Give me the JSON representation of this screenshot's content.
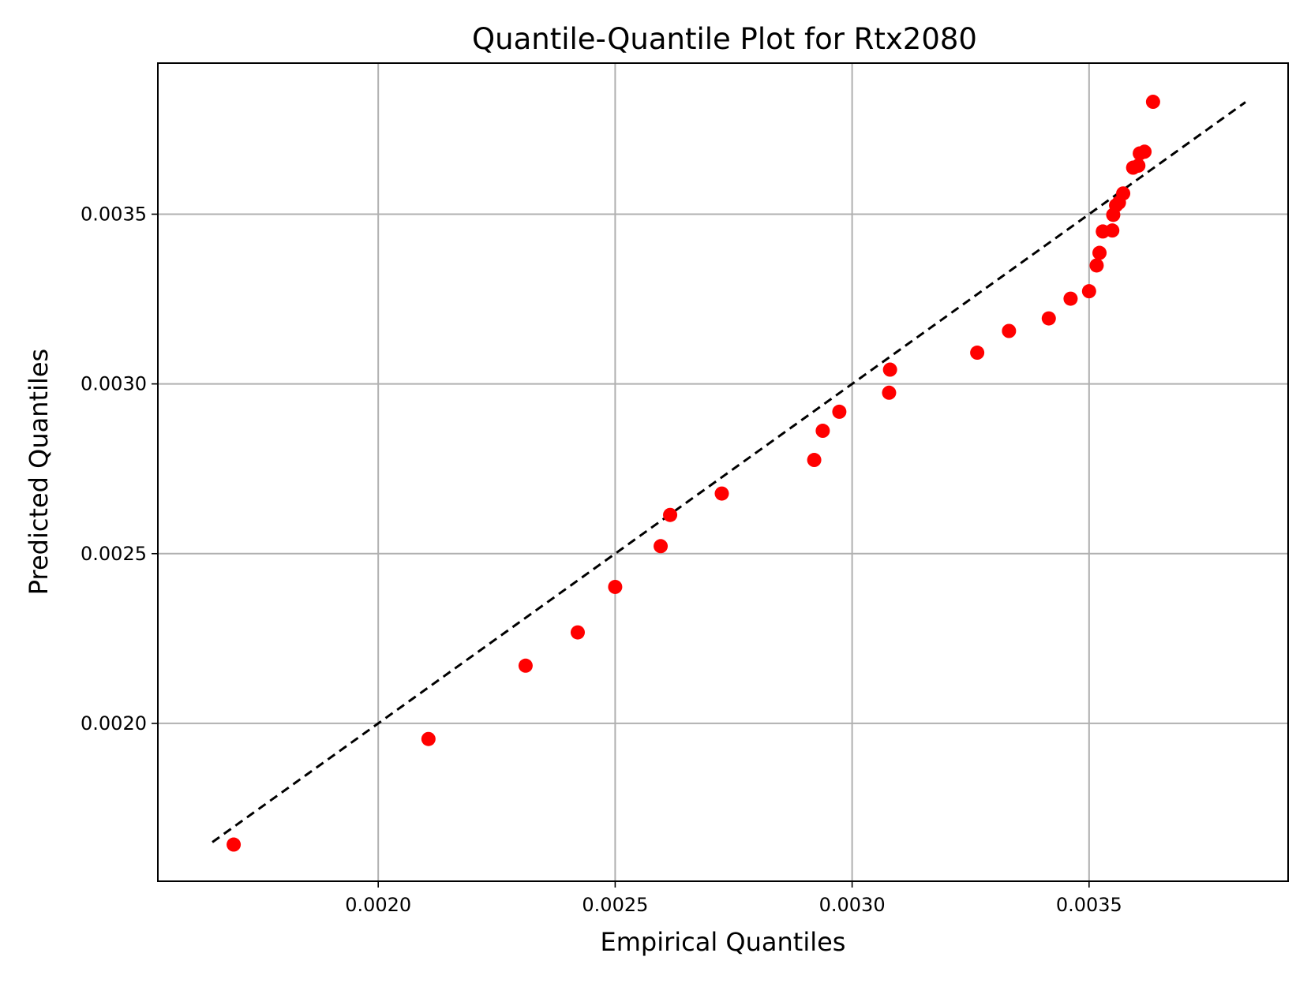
{
  "chart_data": {
    "type": "scatter",
    "title": "Quantile-Quantile Plot for Rtx2080",
    "xlabel": "Empirical Quantiles",
    "ylabel": "Predicted Quantiles",
    "xlim": [
      0.001535,
      0.00392
    ],
    "ylim": [
      0.001535,
      0.003945
    ],
    "xticks": [
      0.002,
      0.0025,
      0.003,
      0.0035
    ],
    "xtick_labels": [
      "0.0020",
      "0.0025",
      "0.0030",
      "0.0035"
    ],
    "yticks": [
      0.002,
      0.0025,
      0.003,
      0.0035
    ],
    "ytick_labels": [
      "0.0020",
      "0.0025",
      "0.0030",
      "0.0035"
    ],
    "grid": true,
    "legend": "none",
    "reference_line": {
      "x": [
        0.00165,
        0.00383
      ],
      "y": [
        0.00165,
        0.00383
      ],
      "style": "dashed",
      "color": "#000000"
    },
    "point_color": "#ff0000",
    "points": [
      {
        "x": 0.001695,
        "y": 0.001643
      },
      {
        "x": 0.002106,
        "y": 0.001954
      },
      {
        "x": 0.002311,
        "y": 0.00217
      },
      {
        "x": 0.002421,
        "y": 0.002268
      },
      {
        "x": 0.0025,
        "y": 0.002402
      },
      {
        "x": 0.002596,
        "y": 0.002522
      },
      {
        "x": 0.002616,
        "y": 0.002614
      },
      {
        "x": 0.002725,
        "y": 0.002677
      },
      {
        "x": 0.00292,
        "y": 0.002776
      },
      {
        "x": 0.002938,
        "y": 0.002862
      },
      {
        "x": 0.002973,
        "y": 0.002918
      },
      {
        "x": 0.003078,
        "y": 0.002974
      },
      {
        "x": 0.00308,
        "y": 0.003042
      },
      {
        "x": 0.003264,
        "y": 0.003092
      },
      {
        "x": 0.003331,
        "y": 0.003156
      },
      {
        "x": 0.003415,
        "y": 0.003193
      },
      {
        "x": 0.003461,
        "y": 0.003251
      },
      {
        "x": 0.0035,
        "y": 0.003273
      },
      {
        "x": 0.003516,
        "y": 0.003349
      },
      {
        "x": 0.003522,
        "y": 0.003386
      },
      {
        "x": 0.003529,
        "y": 0.003449
      },
      {
        "x": 0.003549,
        "y": 0.003452
      },
      {
        "x": 0.003551,
        "y": 0.003498
      },
      {
        "x": 0.003557,
        "y": 0.003526
      },
      {
        "x": 0.003563,
        "y": 0.003534
      },
      {
        "x": 0.003572,
        "y": 0.003561
      },
      {
        "x": 0.003593,
        "y": 0.003637
      },
      {
        "x": 0.003604,
        "y": 0.003643
      },
      {
        "x": 0.003607,
        "y": 0.003679
      },
      {
        "x": 0.003617,
        "y": 0.003684
      },
      {
        "x": 0.003635,
        "y": 0.003831
      }
    ]
  }
}
